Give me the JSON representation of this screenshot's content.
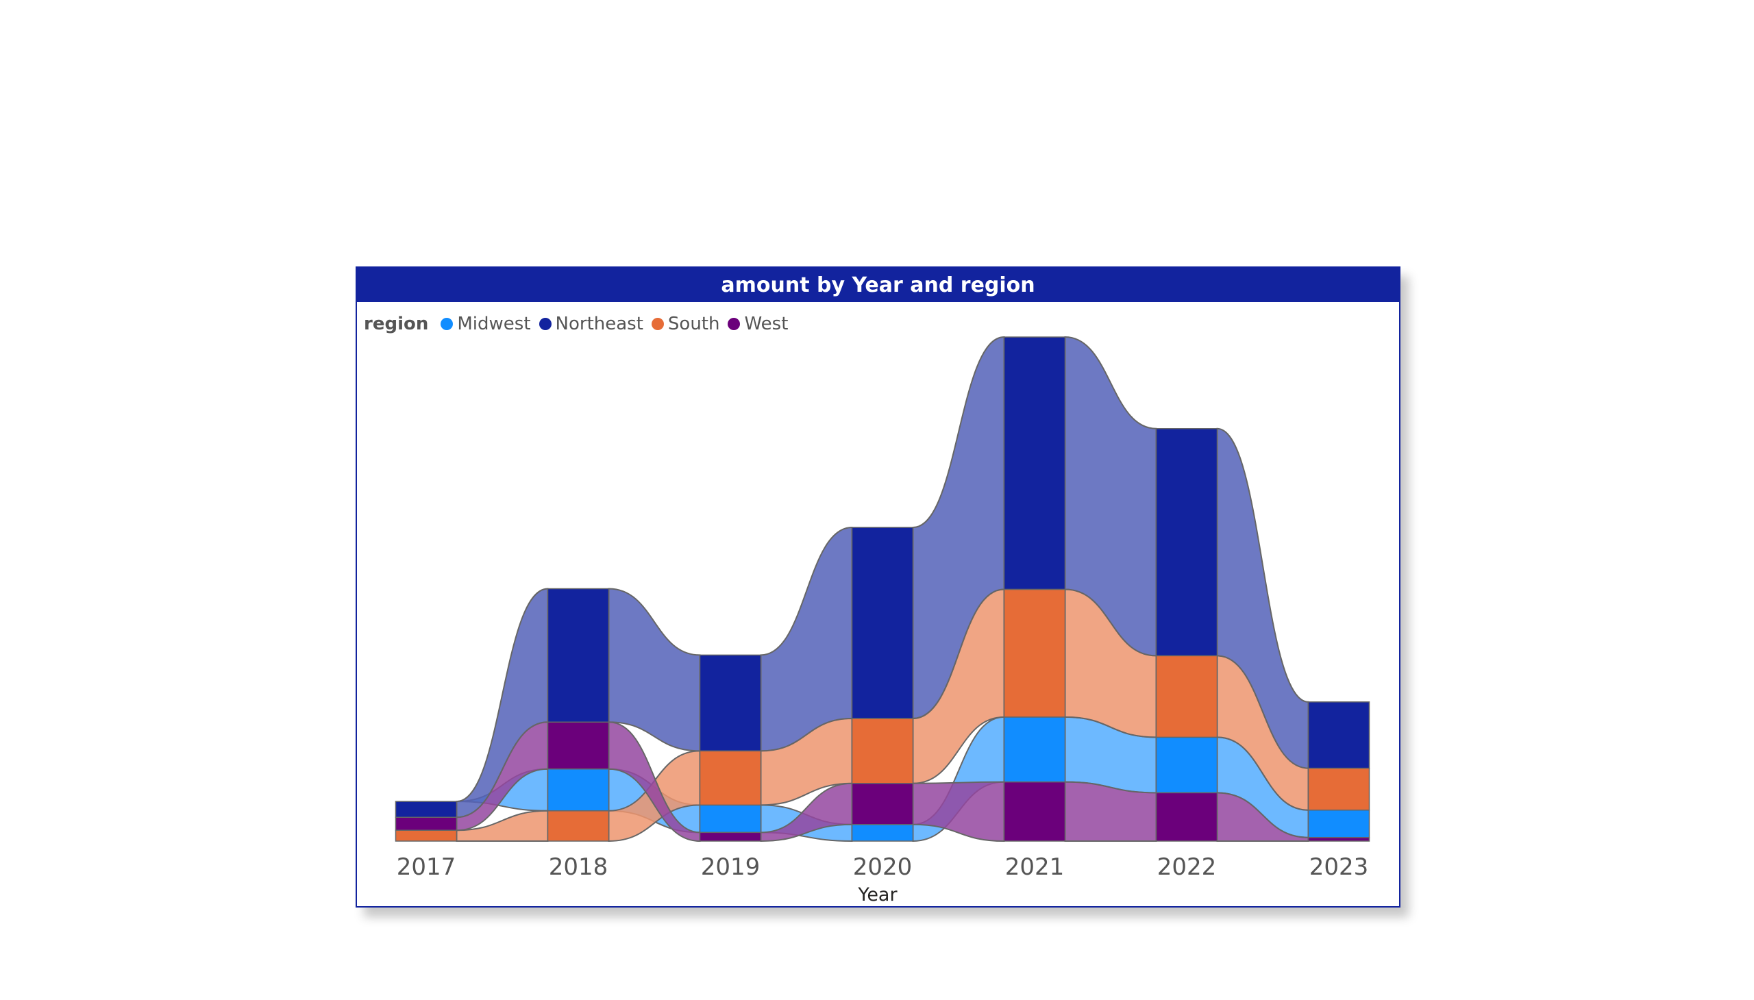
{
  "chart_data": {
    "type": "ribbon",
    "title": "amount by Year and region",
    "legend_title": "region",
    "legend_position": "top-left",
    "xlabel": "Year",
    "categories": [
      "2017",
      "2018",
      "2019",
      "2020",
      "2021",
      "2022",
      "2023"
    ],
    "stack_order_bottom_to_top": [
      [
        "South",
        "West",
        "Northeast"
      ],
      [
        "South",
        "Midwest",
        "West",
        "Northeast"
      ],
      [
        "West",
        "Midwest",
        "South",
        "Northeast"
      ],
      [
        "Midwest",
        "West",
        "South",
        "Northeast"
      ],
      [
        "West",
        "Midwest",
        "South",
        "Northeast"
      ],
      [
        "West",
        "Midwest",
        "South",
        "Northeast"
      ],
      [
        "West",
        "Midwest",
        "South",
        "Northeast"
      ]
    ],
    "series": [
      {
        "name": "Midwest",
        "color": "#118DFF",
        "values": [
          0,
          58,
          38,
          23,
          90,
          77,
          38
        ]
      },
      {
        "name": "Northeast",
        "color": "#12239E",
        "values": [
          22,
          185,
          133,
          265,
          350,
          315,
          92
        ]
      },
      {
        "name": "South",
        "color": "#E66C37",
        "values": [
          15,
          42,
          75,
          90,
          177,
          113,
          58
        ]
      },
      {
        "name": "West",
        "color": "#6B007B",
        "values": [
          18,
          65,
          12,
          57,
          82,
          67,
          5
        ]
      }
    ],
    "ylim": [
      0,
      700
    ],
    "grid": false
  }
}
